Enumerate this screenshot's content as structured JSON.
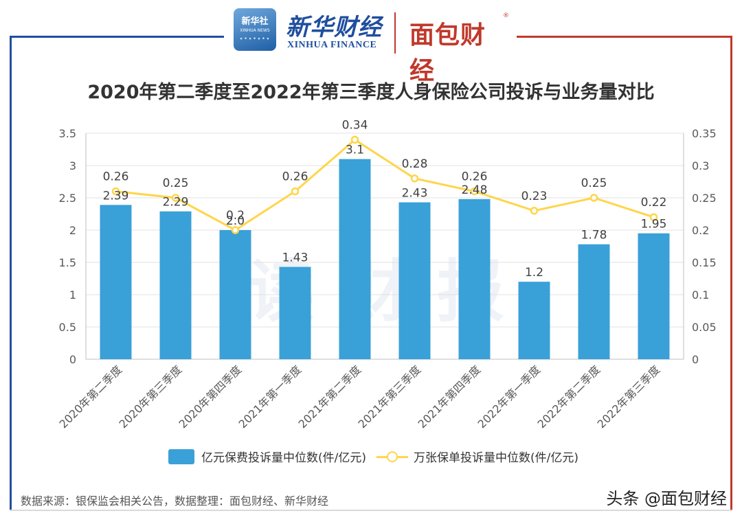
{
  "header": {
    "xinhua_badge_label": "新华社",
    "xinhua_badge_sub": "XINHUA NEWS",
    "xinhua_cn": "新华财经",
    "xinhua_en": "XINHUA FINANCE",
    "mianbao_logo": "面包财经",
    "registered_mark": "®"
  },
  "colors": {
    "bar": "#3aa0d8",
    "line": "#ffd54a",
    "frame_left": "#1f4e9e",
    "frame_right": "#c0392b",
    "axis_text": "#595959",
    "grid": "#e0e0e0"
  },
  "watermark": "读财报",
  "chart_data": {
    "type": "bar",
    "title": "2020年第二季度至2022年第三季度人身保险公司投诉与业务量对比",
    "categories": [
      "2020年第二季度",
      "2020年第三季度",
      "2020年第四季度",
      "2021年第一季度",
      "2021年第二季度",
      "2021年第三季度",
      "2021年第四季度",
      "2022年第一季度",
      "2022年第二季度",
      "2022年第三季度"
    ],
    "series": [
      {
        "name": "亿元保费投诉量中位数(件/亿元)",
        "type": "bar",
        "axis": "left",
        "values": [
          2.39,
          2.29,
          2.0,
          1.43,
          3.1,
          2.43,
          2.48,
          1.2,
          1.78,
          1.95
        ],
        "labels": [
          "2.39",
          "2.29",
          "2.0",
          "1.43",
          "3.1",
          "2.43",
          "2.48",
          "1.2",
          "1.78",
          "1.95"
        ]
      },
      {
        "name": "万张保单投诉量中位数(件/亿元)",
        "type": "line",
        "axis": "right",
        "values": [
          0.26,
          0.25,
          0.2,
          0.26,
          0.34,
          0.28,
          0.26,
          0.23,
          0.25,
          0.22
        ],
        "labels": [
          "0.26",
          "0.25",
          "0.2",
          "0.26",
          "0.34",
          "0.28",
          "0.26",
          "0.23",
          "0.25",
          "0.22"
        ]
      }
    ],
    "y_left": {
      "min": 0,
      "max": 3.5,
      "ticks": [
        "0",
        "0.5",
        "1",
        "1.5",
        "2",
        "2.5",
        "3",
        "3.5"
      ]
    },
    "y_right": {
      "min": 0,
      "max": 0.35,
      "ticks": [
        "0",
        "0.05",
        "0.1",
        "0.15",
        "0.2",
        "0.25",
        "0.3",
        "0.35"
      ]
    },
    "grid": true,
    "legend_position": "bottom"
  },
  "footer": {
    "source": "数据来源：银保监会相关公告，数据整理：面包财经、新华财经",
    "credit": "头条 @面包财经"
  }
}
